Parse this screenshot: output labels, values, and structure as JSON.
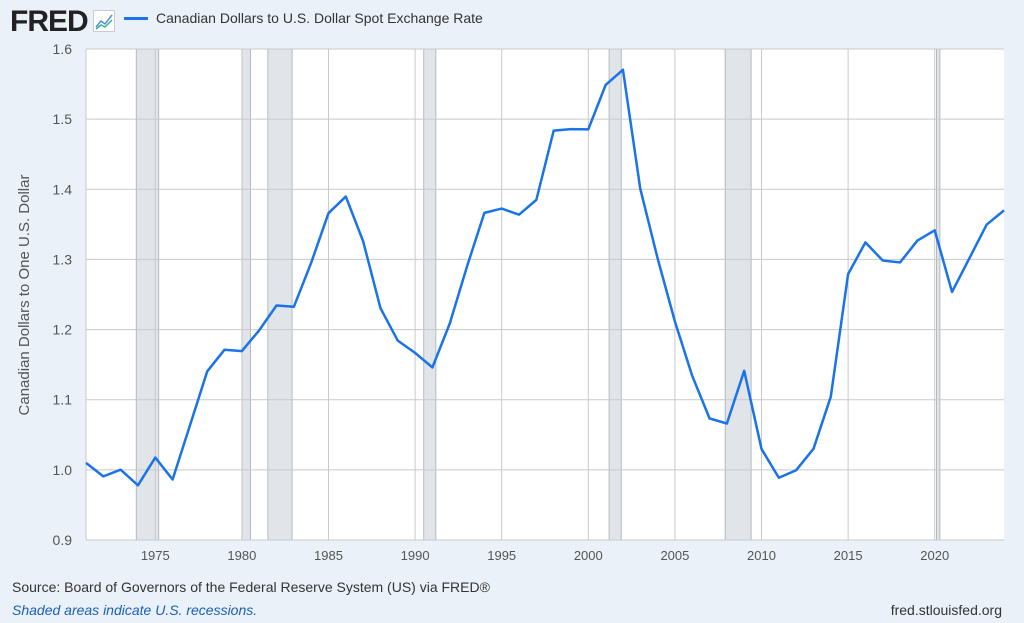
{
  "header": {
    "logo": "FRED",
    "logo_icon": "chart-line-icon"
  },
  "footer": {
    "source": "Source: Board of Governors of the Federal Reserve System (US) via FRED®",
    "shaded": "Shaded areas indicate U.S. recessions.",
    "url": "fred.stlouisfed.org"
  },
  "colors": {
    "line": "#1a73e8",
    "recession": "#e1e5ea"
  },
  "chart_data": {
    "type": "line",
    "title": "Canadian Dollars to U.S. Dollar Spot Exchange Rate",
    "xlabel": "",
    "ylabel": "Canadian Dollars to One U.S. Dollar",
    "xlim": [
      1971,
      2024
    ],
    "ylim": [
      0.9,
      1.6
    ],
    "xticks": [
      1975,
      1980,
      1985,
      1990,
      1995,
      2000,
      2005,
      2010,
      2015,
      2020
    ],
    "yticks": [
      "0.9",
      "1.0",
      "1.1",
      "1.2",
      "1.3",
      "1.4",
      "1.5",
      "1.6"
    ],
    "grid": true,
    "legend": "top-left",
    "recessions": [
      [
        1973.9,
        1975.2
      ],
      [
        1980.0,
        1980.5
      ],
      [
        1981.5,
        1982.9
      ],
      [
        1990.5,
        1991.2
      ],
      [
        2001.2,
        2001.9
      ],
      [
        2007.9,
        2009.4
      ],
      [
        2020.1,
        2020.3
      ]
    ],
    "series": [
      {
        "name": "Canadian Dollars to U.S. Dollar Spot Exchange Rate",
        "x": [
          1971,
          1972,
          1973,
          1974,
          1975,
          1976,
          1977,
          1978,
          1979,
          1980,
          1981,
          1982,
          1983,
          1984,
          1985,
          1986,
          1987,
          1988,
          1989,
          1990,
          1991,
          1992,
          1993,
          1994,
          1995,
          1996,
          1997,
          1998,
          1999,
          2000,
          2001,
          2002,
          2003,
          2004,
          2005,
          2006,
          2007,
          2008,
          2009,
          2010,
          2011,
          2012,
          2013,
          2014,
          2015,
          2016,
          2017,
          2018,
          2019,
          2020,
          2021,
          2022,
          2023,
          2024
        ],
        "values": [
          1.0099,
          0.9907,
          1.0002,
          0.978,
          1.0175,
          0.9863,
          1.0633,
          1.1405,
          1.1713,
          1.1693,
          1.199,
          1.2344,
          1.2325,
          1.2952,
          1.3659,
          1.3896,
          1.3259,
          1.2306,
          1.1842,
          1.1668,
          1.146,
          1.2085,
          1.2902,
          1.3664,
          1.3725,
          1.3638,
          1.3849,
          1.4836,
          1.4858,
          1.4855,
          1.5487,
          1.5704,
          1.4008,
          1.3017,
          1.2115,
          1.134,
          1.0734,
          1.066,
          1.1412,
          1.0298,
          0.9887,
          0.9995,
          1.03,
          1.1043,
          1.2791,
          1.3243,
          1.2984,
          1.2957,
          1.3269,
          1.3415,
          1.2537,
          1.3016,
          1.3497,
          1.3699
        ]
      }
    ]
  }
}
